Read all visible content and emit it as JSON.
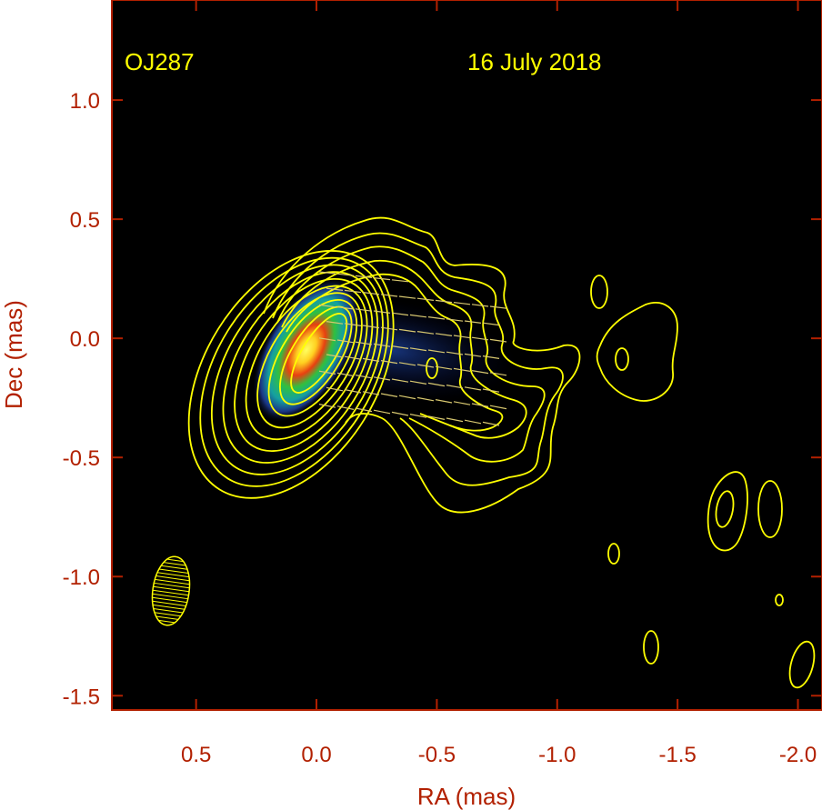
{
  "chart_data": {
    "type": "contour",
    "title": "",
    "xlabel": "RA (mas)",
    "ylabel": "Dec (mas)",
    "xlim": [
      0.85,
      -2.1
    ],
    "ylim": [
      -1.56,
      1.42
    ],
    "x_reversed": true,
    "x_ticks": [
      {
        "value": 0.5,
        "label": "0.5"
      },
      {
        "value": 0.0,
        "label": "0.0"
      },
      {
        "value": -0.5,
        "label": "-0.5"
      },
      {
        "value": -1.0,
        "label": "-1.0"
      },
      {
        "value": -1.5,
        "label": "-1.5"
      },
      {
        "value": -2.0,
        "label": "-2.0"
      }
    ],
    "y_ticks": [
      {
        "value": 1.0,
        "label": "1.0"
      },
      {
        "value": 0.5,
        "label": "0.5"
      },
      {
        "value": 0.0,
        "label": "0.0"
      },
      {
        "value": -0.5,
        "label": "-0.5"
      },
      {
        "value": -1.0,
        "label": "-1.0"
      },
      {
        "value": -1.5,
        "label": "-1.5"
      }
    ],
    "annotations": [
      {
        "text": "OJ287",
        "x": 0.78,
        "y": 1.17
      },
      {
        "text": "16 July 2018",
        "x": -0.97,
        "y": 1.17
      }
    ],
    "core": {
      "x": -0.03,
      "y": -0.03,
      "color_scale": [
        "#1d2f7a",
        "#1a8fa0",
        "#2bbf4a",
        "#e0e030",
        "#e03a10",
        "#ffff40"
      ]
    },
    "beam": {
      "x": 0.61,
      "y": -1.06,
      "major": 0.3,
      "minor": 0.14,
      "pa_deg": 8
    },
    "colors": {
      "background": "#000000",
      "contour": "#ffff00",
      "axis": "#b22000",
      "text": "#ffff00",
      "evpa": "#d8c870"
    }
  }
}
